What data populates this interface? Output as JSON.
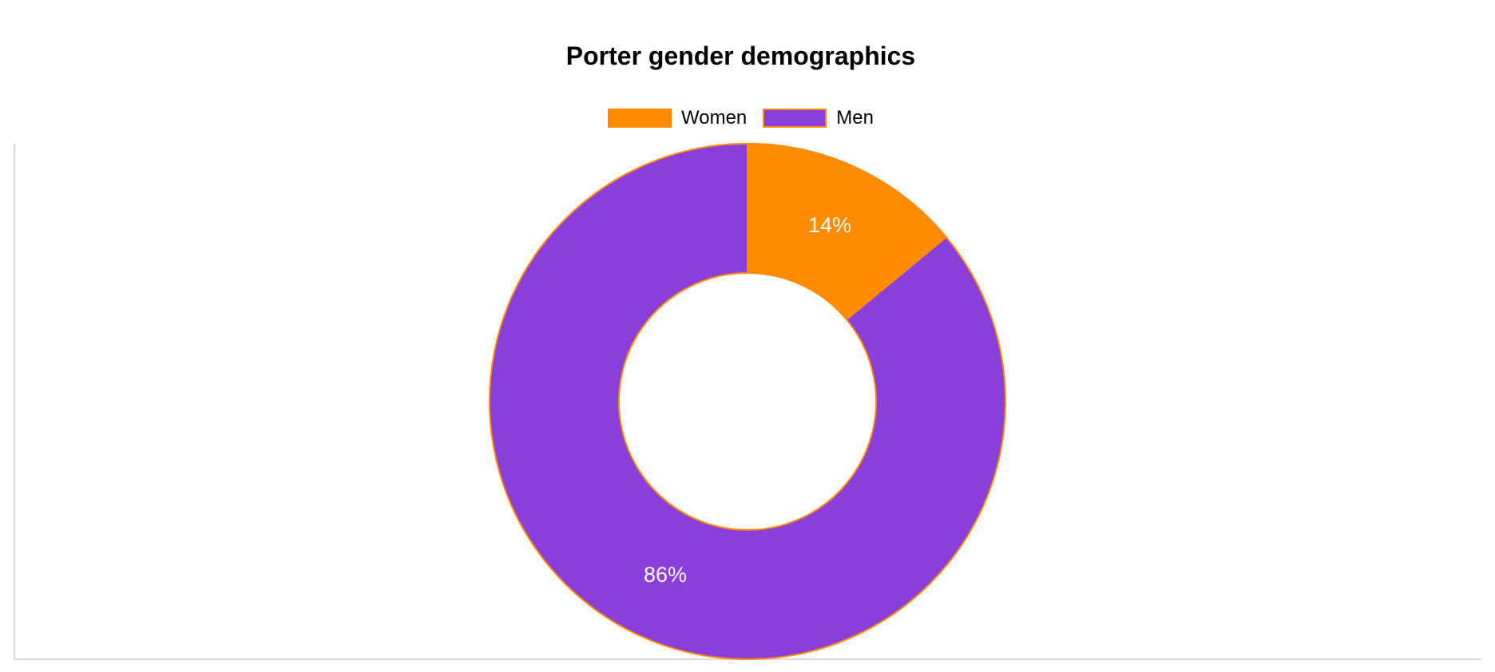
{
  "chart_data": {
    "type": "pie",
    "title": "Porter gender demographics",
    "categories": [
      "Women",
      "Men"
    ],
    "values": [
      14,
      86
    ],
    "value_labels": [
      "14%",
      "86%"
    ],
    "colors": [
      "#ff8c00",
      "#8a3fdd"
    ],
    "border_color": "#ff8c00",
    "label_color": "#ffffff",
    "legend_position": "top",
    "donut": true
  }
}
